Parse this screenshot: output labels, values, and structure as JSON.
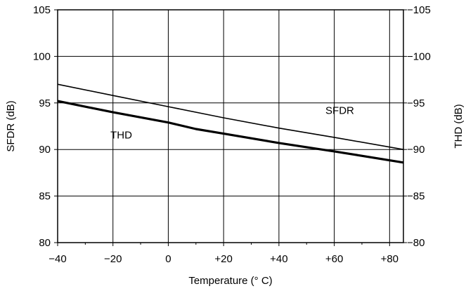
{
  "chart_data": {
    "type": "line",
    "xlabel": "Temperature (° C)",
    "ylabel_left": "SFDR (dB)",
    "ylabel_right": "THD (dB)",
    "xlim": [
      -40,
      85
    ],
    "ylim_left": [
      80,
      105
    ],
    "ylim_right": [
      -80,
      -105
    ],
    "x_ticks": [
      -40,
      -20,
      0,
      20,
      40,
      60,
      80
    ],
    "x_tick_labels": [
      "−40",
      "−20",
      "0",
      "+20",
      "+40",
      "+60",
      "+80"
    ],
    "y_left_ticks": [
      80,
      85,
      90,
      95,
      100,
      105
    ],
    "y_left_tick_labels": [
      "80",
      "85",
      "90",
      "95",
      "100",
      "105"
    ],
    "y_right_ticks": [
      -80,
      -85,
      -90,
      -95,
      -100,
      -105
    ],
    "y_right_tick_labels": [
      "−80",
      "−85",
      "−90",
      "−95",
      "−100",
      "−105"
    ],
    "grid": true,
    "series": [
      {
        "name": "SFDR",
        "axis": "left",
        "x": [
          -40,
          -20,
          0,
          20,
          40,
          60,
          85
        ],
        "y": [
          97.0,
          95.8,
          94.6,
          93.4,
          92.3,
          91.3,
          90.0
        ]
      },
      {
        "name": "THD",
        "axis": "right",
        "x": [
          -40,
          -20,
          0,
          10,
          20,
          40,
          60,
          85
        ],
        "y": [
          -95.2,
          -94.0,
          -92.9,
          -92.2,
          -91.7,
          -90.7,
          -89.8,
          -88.6
        ]
      }
    ],
    "annotations": [
      {
        "text": "SFDR",
        "x": 62,
        "y": 93.8
      },
      {
        "text": "THD",
        "x": -17,
        "y": 91.2
      }
    ]
  }
}
